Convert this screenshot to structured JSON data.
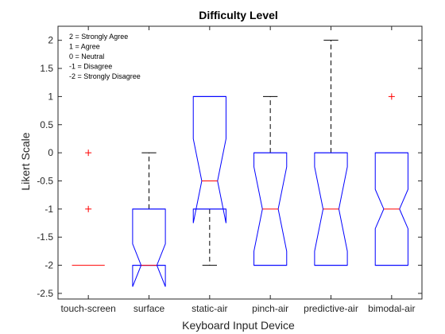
{
  "chart_data": {
    "type": "boxplot",
    "title": "Difficulty Level",
    "xlabel": "Keyboard Input Device",
    "ylabel": "Likert Scale",
    "ylim": [
      -2.6,
      2.25
    ],
    "yticks": [
      2,
      1.5,
      1,
      0.5,
      0,
      -0.5,
      -1,
      -1.5,
      -2,
      -2.5
    ],
    "ytick_labels": [
      "2",
      "1.5",
      "1",
      "0.5",
      "0",
      "-0.5",
      "-1",
      "-1.5",
      "-2",
      "-2.5"
    ],
    "grid": false,
    "notched": true,
    "legend_lines": [
      "2 = Strongly Agree",
      "1 = Agree",
      "0 = Neutral",
      "-1 = Disagree",
      "-2 = Strongly Disagree"
    ],
    "legend_position": "top-left",
    "categories": [
      "touch-screen",
      "surface",
      "static-air",
      "pinch-air",
      "predictive-air",
      "bimodal-air"
    ],
    "boxes": [
      {
        "q1": -2,
        "median": -2,
        "q3": -2,
        "whisker_low": -2,
        "whisker_high": -2,
        "notch_low": -2,
        "notch_high": -2,
        "outliers": [
          0,
          -1
        ]
      },
      {
        "q1": -2,
        "median": -2,
        "q3": -1,
        "whisker_low": -2,
        "whisker_high": 0,
        "notch_low": -2.38,
        "notch_high": -1.62,
        "outliers": []
      },
      {
        "q1": -1,
        "median": -0.5,
        "q3": 1,
        "whisker_low": -2,
        "whisker_high": 1,
        "notch_low": -1.25,
        "notch_high": 0.25,
        "outliers": []
      },
      {
        "q1": -2,
        "median": -1,
        "q3": 0,
        "whisker_low": -2,
        "whisker_high": 1,
        "notch_low": -1.75,
        "notch_high": -0.25,
        "outliers": []
      },
      {
        "q1": -2,
        "median": -1,
        "q3": 0,
        "whisker_low": -2,
        "whisker_high": 2,
        "notch_low": -1.75,
        "notch_high": -0.25,
        "outliers": []
      },
      {
        "q1": -2,
        "median": -1,
        "q3": 0,
        "whisker_low": -2,
        "whisker_high": 0,
        "notch_low": -1.35,
        "notch_high": -0.65,
        "outliers": [
          1
        ]
      }
    ],
    "colors": {
      "box": "#0000ff",
      "median": "#ff0000",
      "whisker": "#000000",
      "outlier": "#ff0000",
      "axes": "#262626"
    }
  }
}
